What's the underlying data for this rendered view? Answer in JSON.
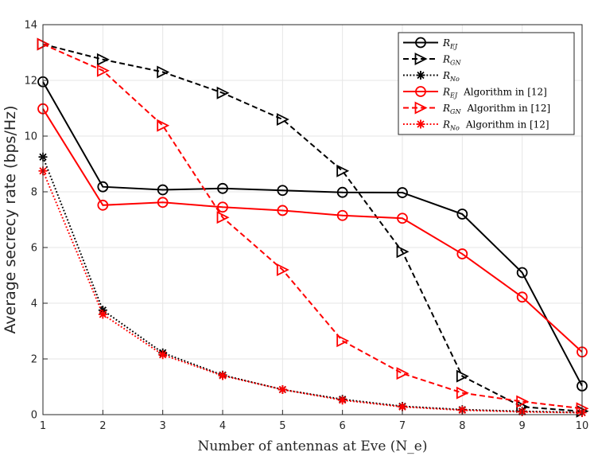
{
  "chart_data": {
    "type": "line",
    "title": "",
    "xlabel": "Number of antennas at Eve (N_e)",
    "ylabel": "Average secrecy rate (bps/Hz)",
    "xlim": [
      1,
      10
    ],
    "ylim": [
      0,
      14
    ],
    "xticks": [
      1,
      2,
      3,
      4,
      5,
      6,
      7,
      8,
      9,
      10
    ],
    "yticks": [
      0,
      2,
      4,
      6,
      8,
      10,
      12,
      14
    ],
    "grid": true,
    "legend_position": "top-right",
    "x": [
      1,
      2,
      3,
      4,
      5,
      6,
      7,
      8,
      9,
      10
    ],
    "series": [
      {
        "name": "R_EJ",
        "legend_main": "R",
        "legend_sub": "EJ",
        "legend_suffix": "",
        "color": "#000000",
        "dash": "solid",
        "marker": "circle",
        "values": [
          11.95,
          8.18,
          8.07,
          8.12,
          8.05,
          7.98,
          7.97,
          7.2,
          5.1,
          1.03
        ]
      },
      {
        "name": "R_GN",
        "legend_main": "R",
        "legend_sub": "GN",
        "legend_suffix": "",
        "color": "#000000",
        "dash": "dashed",
        "marker": "triangle-right",
        "values": [
          13.3,
          12.75,
          12.3,
          11.55,
          10.6,
          8.75,
          5.85,
          1.38,
          0.28,
          0.12
        ]
      },
      {
        "name": "R_No",
        "legend_main": "R",
        "legend_sub": "No",
        "legend_suffix": "",
        "color": "#000000",
        "dash": "dotted",
        "marker": "asterisk",
        "values": [
          9.25,
          3.75,
          2.22,
          1.42,
          0.9,
          0.55,
          0.3,
          0.18,
          0.12,
          0.08
        ]
      },
      {
        "name": "R_EJ Algorithm in [12]",
        "legend_main": "R",
        "legend_sub": "EJ",
        "legend_suffix": "Algorithm in [12]",
        "color": "#ff0000",
        "dash": "solid",
        "marker": "circle",
        "values": [
          10.98,
          7.52,
          7.62,
          7.45,
          7.33,
          7.15,
          7.05,
          5.77,
          4.22,
          2.25
        ]
      },
      {
        "name": "R_GN Algorithm in [12]",
        "legend_main": "R",
        "legend_sub": "GN",
        "legend_suffix": "Algorithm in [12]",
        "color": "#ff0000",
        "dash": "dashed",
        "marker": "triangle-right",
        "values": [
          13.3,
          12.35,
          10.38,
          7.08,
          5.2,
          2.65,
          1.48,
          0.78,
          0.47,
          0.22
        ]
      },
      {
        "name": "R_No Algorithm in [12]",
        "legend_main": "R",
        "legend_sub": "No",
        "legend_suffix": "Algorithm in [12]",
        "color": "#ff0000",
        "dash": "dotted",
        "marker": "asterisk",
        "values": [
          8.75,
          3.6,
          2.15,
          1.4,
          0.9,
          0.52,
          0.28,
          0.16,
          0.1,
          0.07
        ]
      }
    ]
  }
}
